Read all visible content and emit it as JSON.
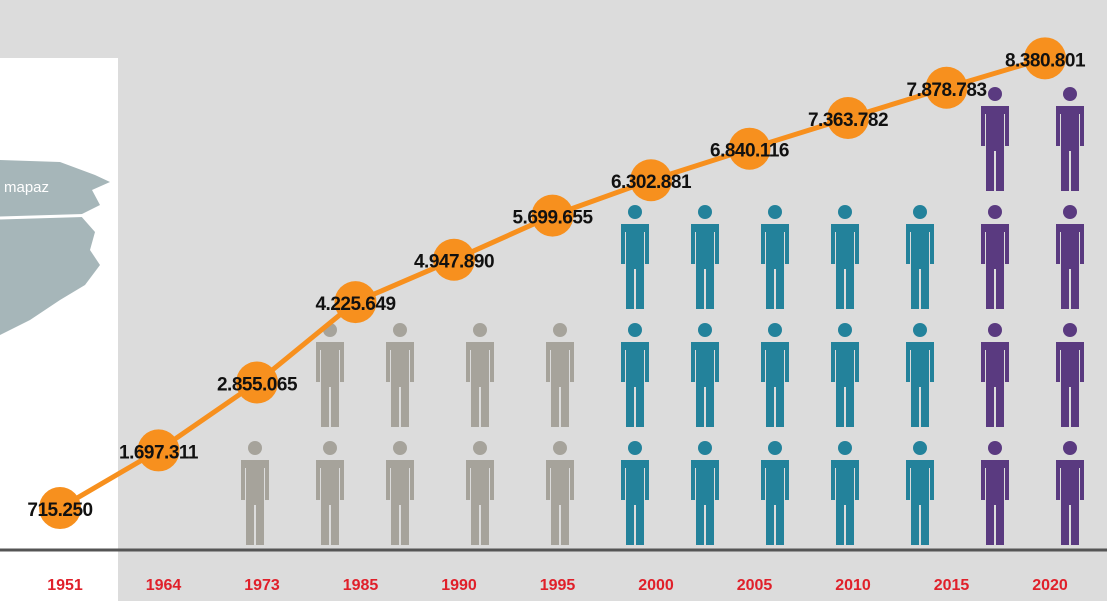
{
  "map_label": "mapaz",
  "chart_data": {
    "type": "line",
    "categories": [
      "1951",
      "1964",
      "1973",
      "1985",
      "1990",
      "1995",
      "2000",
      "2005",
      "2010",
      "2015",
      "2020"
    ],
    "values": [
      715250,
      1697311,
      2855065,
      4225649,
      4947890,
      5699655,
      6302881,
      6840116,
      7363782,
      7878783,
      8380801
    ],
    "value_labels": [
      "715.250",
      "1.697.311",
      "2.855.065",
      "4.225.649",
      "4.947.890",
      "5.699.655",
      "6.302.881",
      "6.840.116",
      "7.363.782",
      "7.878.783",
      "8.380.801"
    ],
    "color": "#f7901e",
    "ylim": [
      0,
      9000000
    ]
  }
}
